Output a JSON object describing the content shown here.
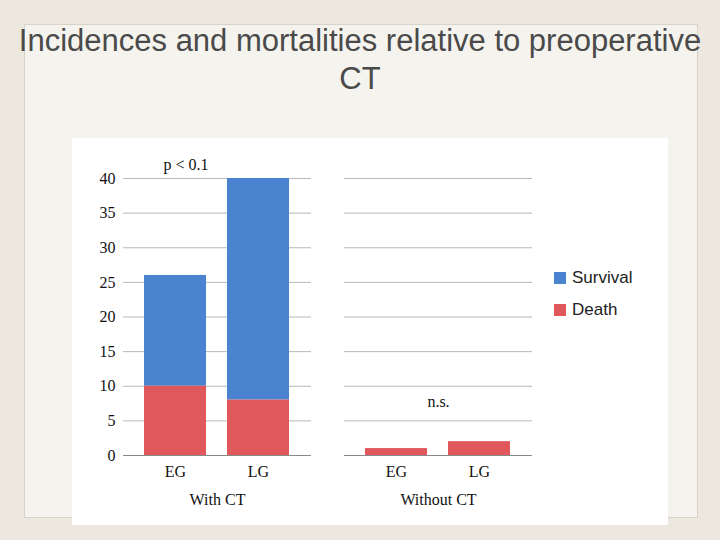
{
  "chart_data": {
    "type": "bar",
    "title": "Incidences and mortalities relative to preoperative CT",
    "stacked": true,
    "categories": [
      "EG",
      "LG",
      "EG",
      "LG"
    ],
    "groups": [
      "With CT",
      "With CT",
      "Without CT",
      "Without CT"
    ],
    "series": [
      {
        "name": "Survival",
        "color": "#4a84d0",
        "values": [
          16,
          32,
          0,
          0
        ]
      },
      {
        "name": "Death",
        "color": "#e0585c",
        "values": [
          10,
          8,
          1,
          2
        ]
      }
    ],
    "ylim": [
      0,
      40
    ],
    "yticks": [
      0,
      5,
      10,
      15,
      20,
      25,
      30,
      35,
      40
    ],
    "grid": true,
    "legend": "right",
    "annotations": [
      {
        "text": "p < 0.1",
        "group": "With CT"
      },
      {
        "text": "n.s.",
        "group": "Without CT"
      }
    ]
  }
}
